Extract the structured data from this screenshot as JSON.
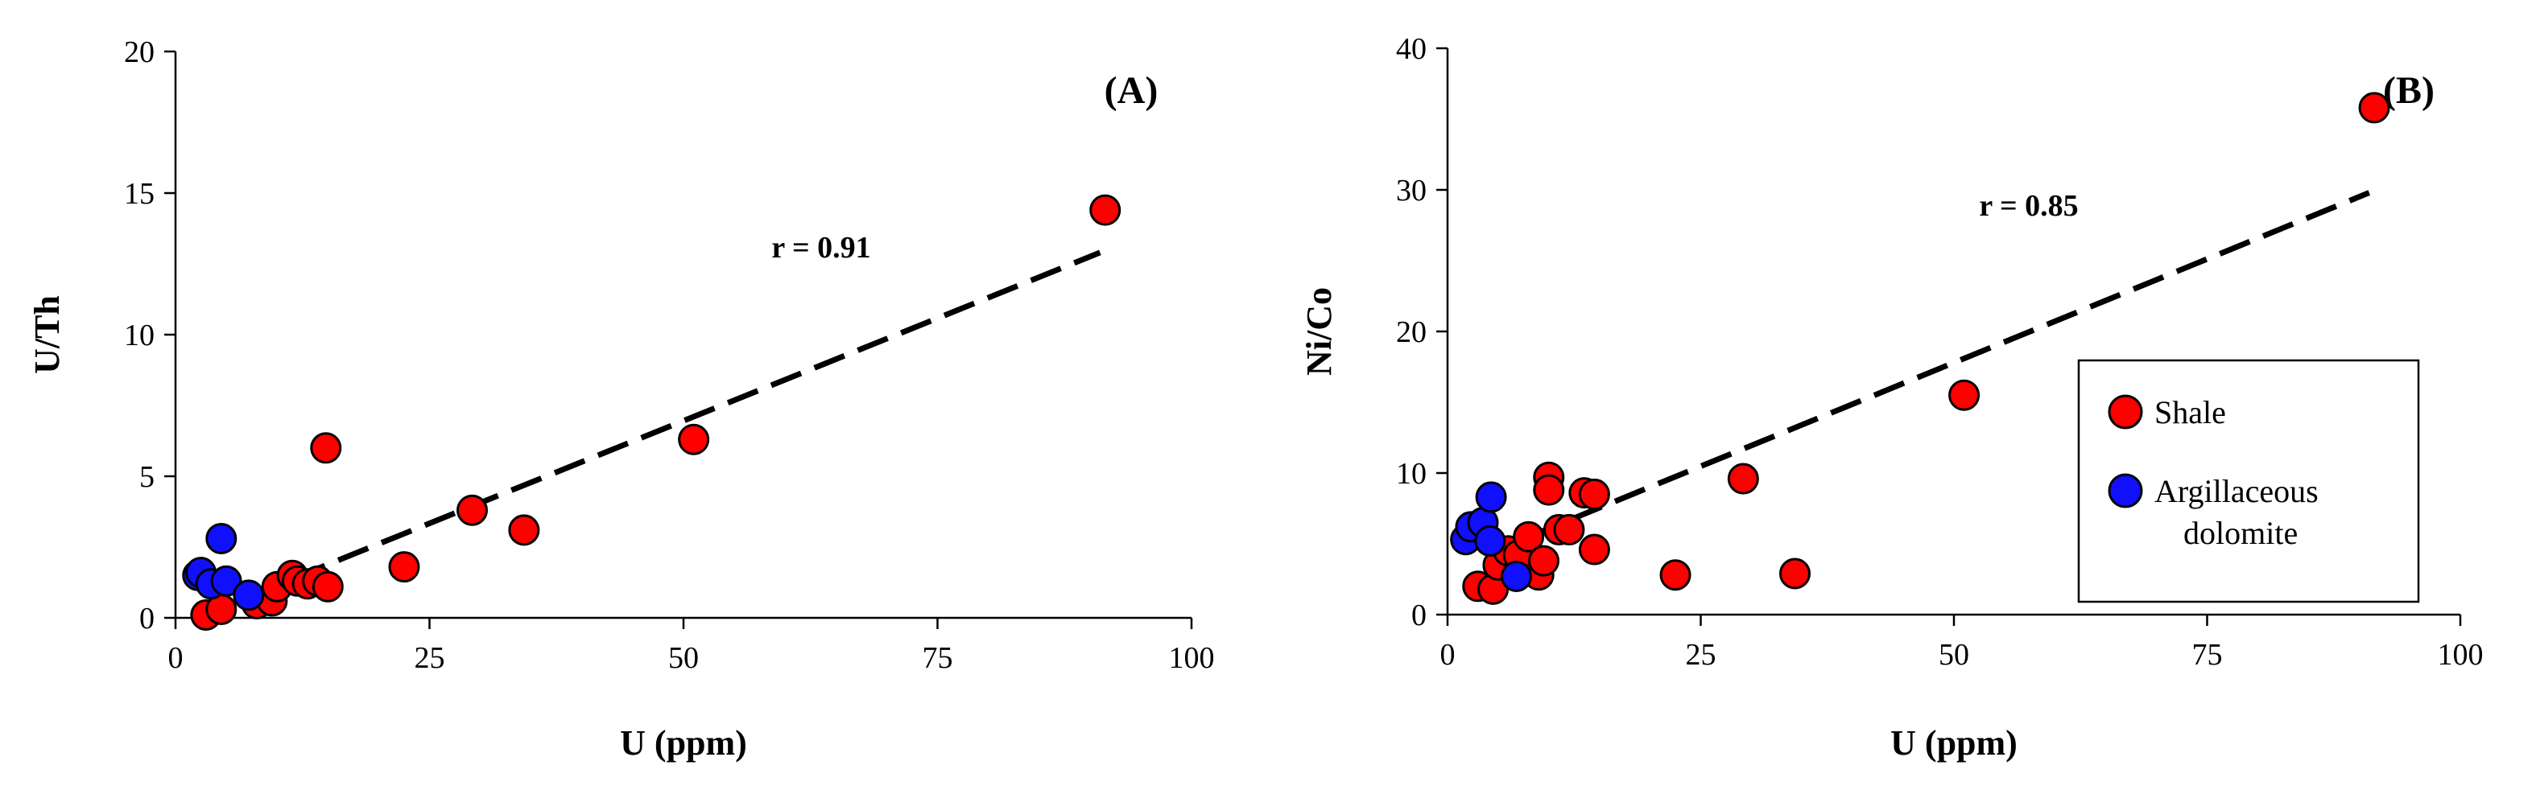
{
  "colors": {
    "shale": "#ff0000",
    "dolomite": "#1010ff"
  },
  "legend": {
    "entries": [
      {
        "key": "shale",
        "lines": [
          "Shale"
        ]
      },
      {
        "key": "dolomite",
        "lines": [
          "Argillaceous",
          "dolomite"
        ]
      }
    ]
  },
  "chart_data": [
    {
      "type": "scatter",
      "panel_label": "(A)",
      "xlabel": "U (ppm)",
      "ylabel": "U/Th",
      "xlim": [
        0,
        100
      ],
      "ylim": [
        0,
        20
      ],
      "xticks": [
        0,
        25,
        50,
        75,
        100
      ],
      "yticks": [
        0,
        5,
        10,
        15,
        20
      ],
      "annotation": "r = 0.91",
      "trendline": {
        "x": [
          7.5,
          91
        ],
        "y": [
          0.8,
          12.9
        ]
      },
      "series": [
        {
          "name": "Shale",
          "key": "shale",
          "points": [
            [
              3,
              0.1
            ],
            [
              4.5,
              0.3
            ],
            [
              8,
              0.5
            ],
            [
              9.5,
              0.6
            ],
            [
              10,
              1.1
            ],
            [
              11.5,
              1.5
            ],
            [
              12,
              1.3
            ],
            [
              13,
              1.2
            ],
            [
              14,
              1.3
            ],
            [
              15,
              1.1
            ],
            [
              14.8,
              6.0
            ],
            [
              22.5,
              1.8
            ],
            [
              29.2,
              3.8
            ],
            [
              34.3,
              3.1
            ],
            [
              51,
              6.3
            ],
            [
              91.5,
              14.4
            ]
          ]
        },
        {
          "name": "Argillaceous dolomite",
          "key": "dolomite",
          "points": [
            [
              2.2,
              1.5
            ],
            [
              2.5,
              1.6
            ],
            [
              3.5,
              1.2
            ],
            [
              4.5,
              2.8
            ],
            [
              5,
              1.3
            ],
            [
              7.2,
              0.8
            ]
          ]
        }
      ]
    },
    {
      "type": "scatter",
      "panel_label": "(B)",
      "xlabel": "U (ppm)",
      "ylabel": "Ni/Co",
      "xlim": [
        0,
        100
      ],
      "ylim": [
        0,
        40
      ],
      "xticks": [
        0,
        25,
        50,
        75,
        100
      ],
      "yticks": [
        0,
        10,
        20,
        30,
        40
      ],
      "annotation": "r  = 0.85",
      "trendline": {
        "x": [
          8,
          91
        ],
        "y": [
          5.5,
          29.8
        ]
      },
      "series": [
        {
          "name": "Shale",
          "key": "shale",
          "points": [
            [
              3,
              2.0
            ],
            [
              4.5,
              1.8
            ],
            [
              5,
              3.5
            ],
            [
              6,
              4.5
            ],
            [
              7,
              4.2
            ],
            [
              8,
              5.5
            ],
            [
              9,
              2.8
            ],
            [
              9.5,
              3.8
            ],
            [
              10,
              9.7
            ],
            [
              10,
              8.8
            ],
            [
              11,
              6.0
            ],
            [
              12,
              6.0
            ],
            [
              13.5,
              8.6
            ],
            [
              14.5,
              8.5
            ],
            [
              14.5,
              4.6
            ],
            [
              22.5,
              2.8
            ],
            [
              29.2,
              9.6
            ],
            [
              34.3,
              2.9
            ],
            [
              51,
              15.5
            ],
            [
              91.5,
              35.8
            ]
          ]
        },
        {
          "name": "Argillaceous dolomite",
          "key": "dolomite",
          "points": [
            [
              1.8,
              5.3
            ],
            [
              2.3,
              6.2
            ],
            [
              3.5,
              6.5
            ],
            [
              4.2,
              5.2
            ],
            [
              4.3,
              8.3
            ],
            [
              6.8,
              2.7
            ]
          ]
        }
      ]
    }
  ]
}
